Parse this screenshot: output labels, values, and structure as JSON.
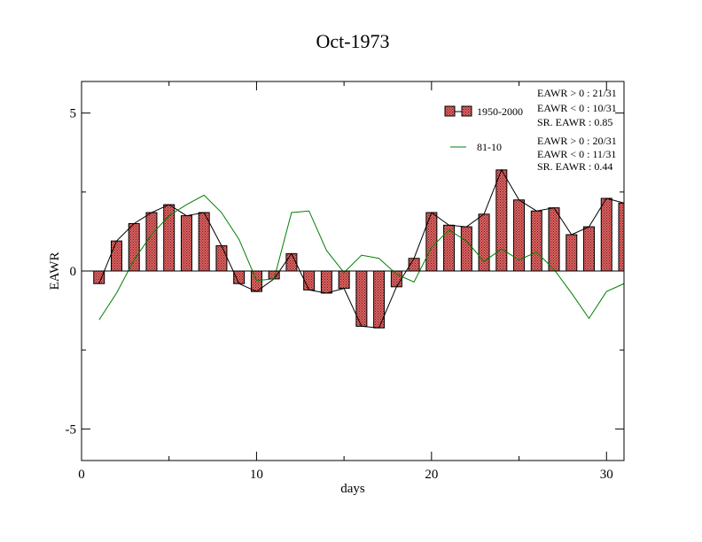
{
  "chart_data": {
    "type": "bar",
    "title": "Oct-1973",
    "xlabel": "days",
    "ylabel": "EAWR",
    "xlim": [
      0,
      31
    ],
    "ylim": [
      -6,
      6
    ],
    "xticks": [
      0,
      10,
      20,
      30
    ],
    "yticks": [
      -5,
      0,
      5
    ],
    "grid": false,
    "x": [
      1,
      2,
      3,
      4,
      5,
      6,
      7,
      8,
      9,
      10,
      11,
      12,
      13,
      14,
      15,
      16,
      17,
      18,
      19,
      20,
      21,
      22,
      23,
      24,
      25,
      26,
      27,
      28,
      29,
      30,
      31
    ],
    "series": [
      {
        "name": "1950-2000",
        "kind": "bar+line",
        "color": "#e06060",
        "values": [
          -0.4,
          0.95,
          1.5,
          1.85,
          2.1,
          1.75,
          1.85,
          0.8,
          -0.4,
          -0.65,
          -0.25,
          0.55,
          -0.6,
          -0.7,
          -0.55,
          -1.75,
          -1.8,
          -0.5,
          0.4,
          1.85,
          1.45,
          1.4,
          1.8,
          3.2,
          2.25,
          1.9,
          2.0,
          1.15,
          1.4,
          2.3,
          2.15
        ]
      },
      {
        "name": "81-10",
        "kind": "line",
        "color": "#008000",
        "values": [
          -1.55,
          -0.7,
          0.35,
          1.15,
          1.75,
          2.1,
          2.4,
          1.85,
          1.0,
          -0.3,
          -0.25,
          1.85,
          1.9,
          0.65,
          -0.05,
          0.5,
          0.4,
          -0.1,
          -0.35,
          0.75,
          1.3,
          0.95,
          0.3,
          0.7,
          0.35,
          0.6,
          0.05,
          -0.7,
          -1.5,
          -0.65,
          -0.4
        ]
      }
    ],
    "legend": {
      "placement": "top-right",
      "entries": [
        {
          "label": "1950-2000",
          "stats": [
            "EAWR > 0 : 21/31",
            "EAWR < 0 : 10/31",
            "SR. EAWR :  0.85"
          ]
        },
        {
          "label": "81-10",
          "stats": [
            "EAWR > 0 : 20/31",
            "EAWR < 0 : 11/31",
            "SR. EAWR :  0.44"
          ]
        }
      ]
    }
  }
}
